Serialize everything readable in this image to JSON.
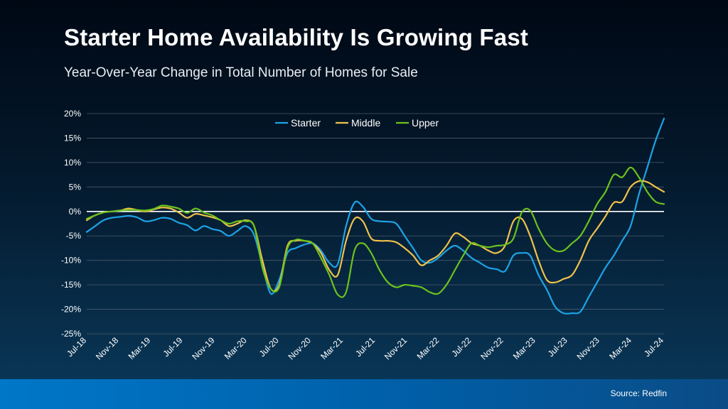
{
  "header": {
    "title": "Starter Home Availability Is Growing Fast",
    "subtitle": "Year-Over-Year Change in Total Number of Homes for Sale"
  },
  "footer": {
    "source": "Source: Redfin"
  },
  "colors": {
    "starter": "#1ea3e6",
    "middle": "#f0c24a",
    "upper": "#6cc21c",
    "gridline": "#4a5a68",
    "zeroline": "#ffffff"
  },
  "chart_data": {
    "type": "line",
    "title": "",
    "xlabel": "",
    "ylabel": "",
    "ylim": [
      -25,
      20
    ],
    "yticks": [
      20,
      15,
      10,
      5,
      0,
      -5,
      -10,
      -15,
      -20,
      -25
    ],
    "ytick_labels": [
      "20%",
      "15%",
      "10%",
      "5%",
      "0%",
      "-5%",
      "-10%",
      "-15%",
      "-20%",
      "-25%"
    ],
    "x_tick_labels": [
      "Jul-18",
      "Nov-18",
      "Mar-19",
      "Jul-19",
      "Nov-19",
      "Mar-20",
      "Jul-20",
      "Nov-20",
      "Mar-21",
      "Jul-21",
      "Nov-21",
      "Mar-22",
      "Jul-22",
      "Nov-22",
      "Mar-23",
      "Jul-23",
      "Nov-23",
      "Mar-24",
      "Jul-24"
    ],
    "x_start": "Jul-18",
    "x_end": "Jul-24",
    "grid": true,
    "legend_position": "top-center",
    "series": [
      {
        "name": "Starter",
        "values": [
          -4.2,
          -3.0,
          -1.8,
          -1.3,
          -1.1,
          -0.9,
          -1.2,
          -2.0,
          -1.8,
          -1.3,
          -1.5,
          -2.3,
          -2.8,
          -3.9,
          -3.0,
          -3.6,
          -4.0,
          -5.0,
          -4.0,
          -3.0,
          -4.8,
          -11.0,
          -16.8,
          -14.0,
          -8.5,
          -7.5,
          -6.8,
          -6.5,
          -8.0,
          -10.5,
          -10.8,
          -3.0,
          1.8,
          1.0,
          -1.5,
          -2.0,
          -2.1,
          -2.5,
          -5.0,
          -7.5,
          -10.0,
          -10.5,
          -9.5,
          -8.0,
          -7.0,
          -8.0,
          -9.5,
          -10.5,
          -11.5,
          -11.8,
          -12.2,
          -9.0,
          -8.5,
          -9.0,
          -13.0,
          -16.0,
          -19.5,
          -20.8,
          -20.8,
          -20.5,
          -17.5,
          -14.5,
          -11.5,
          -9.0,
          -6.0,
          -3.0,
          3.5,
          9.0,
          14.5,
          19.0
        ]
      },
      {
        "name": "Middle",
        "values": [
          -1.8,
          -0.8,
          -0.2,
          0.0,
          0.2,
          0.6,
          0.3,
          0.0,
          0.4,
          0.8,
          0.6,
          -0.2,
          -1.3,
          -0.5,
          -0.8,
          -1.2,
          -1.8,
          -3.0,
          -2.5,
          -1.8,
          -3.0,
          -10.0,
          -15.8,
          -15.0,
          -7.0,
          -6.0,
          -6.0,
          -6.5,
          -8.5,
          -12.0,
          -13.0,
          -6.0,
          -1.5,
          -2.0,
          -5.5,
          -6.0,
          -6.0,
          -6.3,
          -7.5,
          -9.0,
          -11.0,
          -10.0,
          -9.0,
          -7.0,
          -4.5,
          -5.2,
          -6.5,
          -7.0,
          -8.0,
          -8.5,
          -7.0,
          -2.0,
          -1.5,
          -5.0,
          -10.0,
          -14.0,
          -14.5,
          -13.8,
          -13.0,
          -10.0,
          -6.0,
          -3.5,
          -1.0,
          1.8,
          2.0,
          5.0,
          6.2,
          6.0,
          5.0,
          4.0
        ]
      },
      {
        "name": "Upper",
        "values": [
          -1.5,
          -0.8,
          -0.2,
          0.0,
          0.2,
          0.3,
          0.3,
          0.2,
          0.5,
          1.2,
          1.0,
          0.6,
          -0.3,
          0.6,
          -0.2,
          -0.8,
          -1.8,
          -2.5,
          -2.0,
          -2.0,
          -3.0,
          -11.5,
          -15.8,
          -15.5,
          -7.5,
          -5.8,
          -6.0,
          -6.5,
          -9.5,
          -13.0,
          -17.0,
          -16.5,
          -8.0,
          -6.5,
          -8.5,
          -12.0,
          -14.5,
          -15.5,
          -15.0,
          -15.2,
          -15.5,
          -16.5,
          -16.8,
          -15.0,
          -12.0,
          -9.0,
          -6.5,
          -7.0,
          -7.3,
          -7.0,
          -6.8,
          -5.5,
          -0.2,
          0.2,
          -3.5,
          -6.5,
          -8.0,
          -8.0,
          -6.5,
          -5.0,
          -2.0,
          1.5,
          4.0,
          7.5,
          7.0,
          9.0,
          7.0,
          4.0,
          2.0,
          1.5
        ]
      }
    ]
  }
}
